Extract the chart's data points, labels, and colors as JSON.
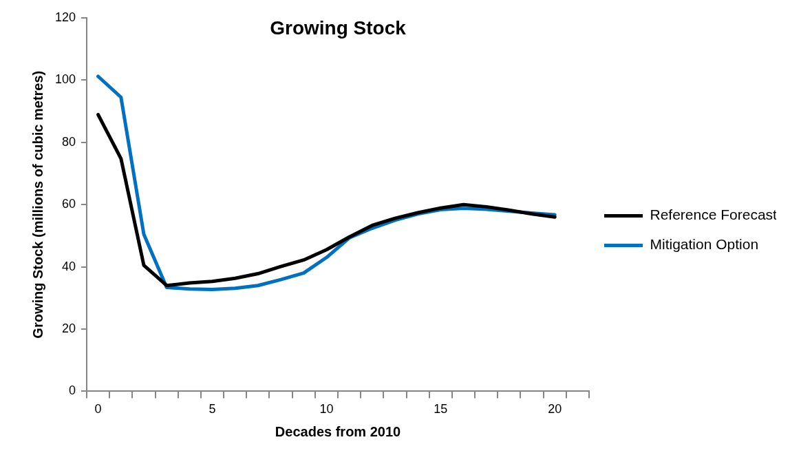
{
  "chart_data": {
    "type": "line",
    "title": "Growing Stock",
    "xlabel": "Decades from 2010",
    "ylabel": "Growing Stock (millions of cubic metres)",
    "categories": [
      "0",
      null,
      null,
      null,
      null,
      "5",
      null,
      null,
      null,
      null,
      "10",
      null,
      null,
      null,
      null,
      "15",
      null,
      null,
      null,
      null,
      "20",
      null
    ],
    "series": [
      {
        "name": "Reference Forecast",
        "color": "#000000",
        "values": [
          88.9,
          74.8,
          40.5,
          34.0,
          34.8,
          35.3,
          36.3,
          37.8,
          40.1,
          42.2,
          45.5,
          49.6,
          53.3,
          55.6,
          57.4,
          58.9,
          60.0,
          59.3,
          58.2,
          57.0,
          56.0,
          null
        ]
      },
      {
        "name": "Mitigation Option",
        "color": "#0070c0",
        "values": [
          101.2,
          94.5,
          50.5,
          33.4,
          32.9,
          32.7,
          33.1,
          34.0,
          35.9,
          38.0,
          43.0,
          49.3,
          52.4,
          55.0,
          57.0,
          58.4,
          58.8,
          58.5,
          57.9,
          57.3,
          56.7,
          null
        ]
      }
    ],
    "ylim": [
      0,
      120
    ],
    "yticks": [
      0,
      20,
      40,
      60,
      80,
      100,
      120
    ],
    "grid": false,
    "legend": "right",
    "marker": "none",
    "line_style": "solid"
  }
}
